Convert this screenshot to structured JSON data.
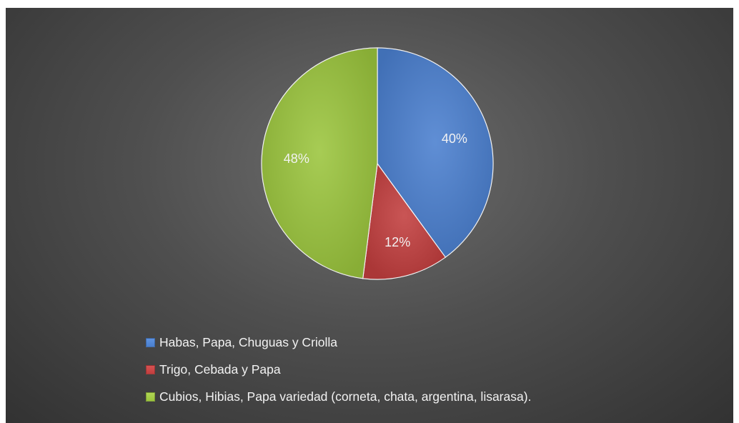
{
  "chart_data": {
    "type": "pie",
    "title": "",
    "slices": [
      {
        "label": "Habas, Papa, Chuguas y Criolla",
        "value": 40,
        "display": "40%",
        "color": "#4a7fcf",
        "color_light": "#5e93e0"
      },
      {
        "label": "Trigo, Cebada y Papa",
        "value": 12,
        "display": "12%",
        "color": "#c23e3e",
        "color_light": "#d65252"
      },
      {
        "label": "Cubios, Hibias, Papa variedad (corneta, chata, argentina, lisarasa).",
        "value": 48,
        "display": "48%",
        "color": "#9bc53d",
        "color_light": "#b0d654"
      }
    ],
    "start_angle_deg": 0,
    "direction": "clockwise",
    "legend_position": "bottom"
  }
}
